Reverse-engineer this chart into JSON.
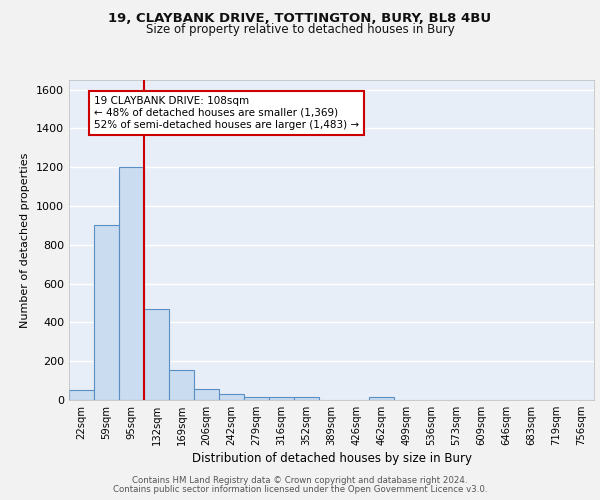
{
  "title_line1": "19, CLAYBANK DRIVE, TOTTINGTON, BURY, BL8 4BU",
  "title_line2": "Size of property relative to detached houses in Bury",
  "xlabel": "Distribution of detached houses by size in Bury",
  "ylabel": "Number of detached properties",
  "footer_line1": "Contains HM Land Registry data © Crown copyright and database right 2024.",
  "footer_line2": "Contains public sector information licensed under the Open Government Licence v3.0.",
  "bar_labels": [
    "22sqm",
    "59sqm",
    "95sqm",
    "132sqm",
    "169sqm",
    "206sqm",
    "242sqm",
    "279sqm",
    "316sqm",
    "352sqm",
    "389sqm",
    "426sqm",
    "462sqm",
    "499sqm",
    "536sqm",
    "573sqm",
    "609sqm",
    "646sqm",
    "683sqm",
    "719sqm",
    "756sqm"
  ],
  "bar_values": [
    50,
    900,
    1200,
    470,
    155,
    55,
    30,
    15,
    15,
    15,
    0,
    0,
    15,
    0,
    0,
    0,
    0,
    0,
    0,
    0,
    0
  ],
  "bar_color": "#c9dcf0",
  "bar_edge_color": "#5a8fc3",
  "background_color": "#e8eef8",
  "grid_color": "#ffffff",
  "fig_background": "#f2f2f2",
  "ylim": [
    0,
    1650
  ],
  "yticks": [
    0,
    200,
    400,
    600,
    800,
    1000,
    1200,
    1400,
    1600
  ],
  "vline_color": "#cc0000",
  "vline_pos": 2.5,
  "annotation_text_line1": "19 CLAYBANK DRIVE: 108sqm",
  "annotation_text_line2": "← 48% of detached houses are smaller (1,369)",
  "annotation_text_line3": "52% of semi-detached houses are larger (1,483) →",
  "annotation_box_color": "#ffffff",
  "annotation_box_edge": "#cc0000"
}
